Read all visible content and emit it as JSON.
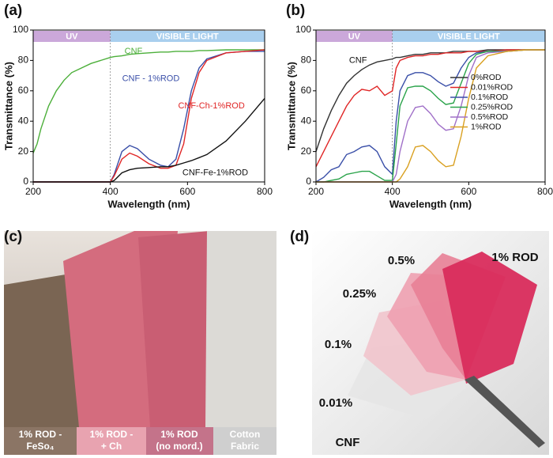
{
  "chart_data": [
    {
      "type": "line",
      "panel_label": "(a)",
      "x_label": "Wavelength (nm)",
      "y_label": "Transmittance (%)",
      "xlim": [
        200,
        800
      ],
      "xticks": [
        200,
        400,
        600,
        800
      ],
      "ylim": [
        0,
        100
      ],
      "yticks": [
        0,
        20,
        40,
        60,
        80,
        100
      ],
      "bands": [
        {
          "label": "UV",
          "range": [
            200,
            400
          ],
          "color": "#cba8da"
        },
        {
          "label": "VISIBLE LIGHT",
          "range": [
            400,
            800
          ],
          "color": "#a9cfee"
        }
      ],
      "x": [
        200,
        210,
        220,
        240,
        260,
        280,
        300,
        350,
        400,
        410,
        430,
        450,
        470,
        500,
        530,
        550,
        570,
        590,
        610,
        630,
        650,
        700,
        750,
        800
      ],
      "series": [
        {
          "name": "CNF",
          "color": "#4caf3a",
          "values": [
            19,
            25,
            35,
            50,
            60,
            67,
            72,
            78,
            82,
            82.5,
            83,
            84,
            84.5,
            85,
            85.5,
            85.5,
            86,
            86,
            86,
            86.5,
            86.5,
            87,
            87,
            87
          ]
        },
        {
          "name": "CNF - 1%ROD",
          "color": "#3a4fa8",
          "values": [
            0,
            0,
            0,
            0,
            0,
            0,
            0,
            0,
            0,
            5,
            20,
            24,
            22,
            15,
            11,
            10,
            15,
            35,
            60,
            75,
            81,
            85,
            86,
            86
          ]
        },
        {
          "name": "CNF-Ch-1%ROD",
          "color": "#e02626",
          "values": [
            0,
            0,
            0,
            0,
            0,
            0,
            0,
            0,
            0,
            4,
            15,
            19,
            17,
            12,
            9,
            9,
            11,
            25,
            55,
            72,
            80,
            85,
            86,
            87
          ]
        },
        {
          "name": "CNF-Fe-1%ROD",
          "color": "#111111",
          "values": [
            0,
            0,
            0,
            0,
            0,
            0,
            0,
            0,
            0,
            1,
            6,
            8,
            9,
            9.5,
            10,
            10,
            11,
            12.5,
            14,
            16,
            18,
            27,
            40,
            55
          ]
        }
      ]
    },
    {
      "type": "line",
      "panel_label": "(b)",
      "x_label": "Wavelength (nm)",
      "y_label": "Transmittance (%)",
      "xlim": [
        200,
        800
      ],
      "xticks": [
        200,
        400,
        600,
        800
      ],
      "ylim": [
        0,
        100
      ],
      "yticks": [
        0,
        20,
        40,
        60,
        80,
        100
      ],
      "bands": [
        {
          "label": "UV",
          "range": [
            200,
            400
          ],
          "color": "#cba8da"
        },
        {
          "label": "VISIBLE LIGHT",
          "range": [
            400,
            800
          ],
          "color": "#a9cfee"
        }
      ],
      "annotations": [
        {
          "text": "CNF"
        }
      ],
      "x": [
        200,
        220,
        240,
        260,
        280,
        300,
        320,
        340,
        360,
        380,
        400,
        410,
        420,
        440,
        460,
        480,
        500,
        520,
        540,
        560,
        580,
        600,
        620,
        650,
        700,
        750,
        800
      ],
      "series": [
        {
          "name": "0%ROD",
          "color": "#333333",
          "values": [
            20,
            35,
            47,
            57,
            65,
            70,
            74,
            77,
            79,
            80,
            81,
            82,
            82,
            83,
            84,
            84,
            85,
            85,
            85,
            86,
            86,
            86,
            86,
            87,
            87,
            87,
            87
          ]
        },
        {
          "name": "0.01%ROD",
          "color": "#e02626",
          "values": [
            10,
            20,
            30,
            40,
            50,
            57,
            61,
            60,
            63,
            57,
            60,
            75,
            80,
            82,
            83,
            83,
            84,
            84,
            85,
            85,
            85,
            86,
            86,
            86,
            87,
            87,
            87
          ]
        },
        {
          "name": "0.1%ROD",
          "color": "#3a4fa8",
          "values": [
            0,
            3,
            8,
            10,
            18,
            20,
            23,
            24,
            20,
            10,
            5,
            40,
            60,
            70,
            72,
            72,
            70,
            66,
            63,
            65,
            75,
            82,
            85,
            86,
            86,
            87,
            87
          ]
        },
        {
          "name": "0.25%ROD",
          "color": "#2aa34a",
          "values": [
            0,
            0,
            1,
            2,
            5,
            6,
            7,
            7,
            4,
            1,
            1,
            25,
            50,
            62,
            63,
            63,
            60,
            55,
            51,
            52,
            65,
            78,
            84,
            86,
            86,
            87,
            87
          ]
        },
        {
          "name": "0.5%ROD",
          "color": "#a070c8",
          "values": [
            0,
            0,
            0,
            0,
            0,
            0,
            0,
            0,
            0,
            0,
            0,
            5,
            20,
            40,
            49,
            50,
            45,
            38,
            34,
            35,
            50,
            70,
            82,
            85,
            86,
            87,
            87
          ]
        },
        {
          "name": "1%ROD",
          "color": "#d9a020",
          "values": [
            0,
            0,
            0,
            0,
            0,
            0,
            0,
            0,
            0,
            0,
            0,
            0,
            2,
            10,
            23,
            24,
            20,
            14,
            10,
            11,
            30,
            55,
            75,
            83,
            86,
            87,
            87
          ]
        }
      ]
    }
  ],
  "photos": {
    "c": {
      "label": "(c)",
      "captions": [
        [
          "1% ROD -",
          "FeSo₄"
        ],
        [
          "1% ROD -",
          "+ Ch"
        ],
        [
          "1% ROD",
          "(no mord.)"
        ],
        [
          "Cotton",
          "Fabric"
        ]
      ]
    },
    "d": {
      "label": "(d)",
      "labels": [
        "1% ROD",
        "0.5%",
        "0.25%",
        "0.1%",
        "0.01%",
        "CNF"
      ]
    }
  }
}
